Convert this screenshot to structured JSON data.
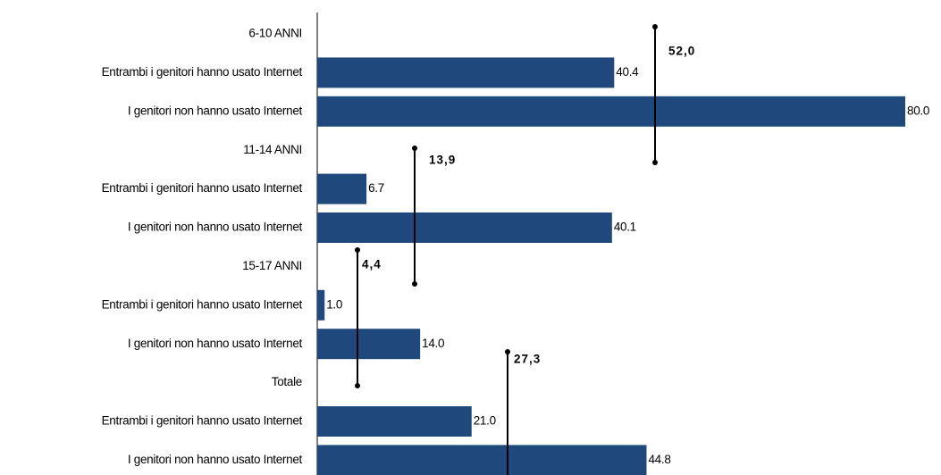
{
  "chart_data": {
    "type": "hbar",
    "categories": [
      "6-10 ANNI",
      "Entrambi i genitori hanno usato Internet",
      "I genitori non hanno usato Internet",
      "11-14 ANNI",
      "Entrambi i genitori hanno usato Internet",
      "I genitori non hanno usato Internet",
      "15-17 ANNI",
      "Entrambi i genitori hanno usato Internet",
      "I genitori non hanno usato Internet",
      "Totale",
      "Entrambi i genitori hanno usato Internet",
      "I genitori non hanno usato Internet"
    ],
    "values": [
      null,
      40.4,
      80.0,
      null,
      6.7,
      40.1,
      null,
      1.0,
      14.0,
      null,
      21.0,
      44.8
    ],
    "value_labels": [
      null,
      "40.4",
      "80.0",
      null,
      "6.7",
      "40.1",
      null,
      "1.0",
      "14.0",
      null,
      "21.0",
      "44.8"
    ],
    "color": "#1f497d",
    "annotations": [
      "52,0",
      "13,9",
      "4,4",
      "27,3"
    ]
  }
}
